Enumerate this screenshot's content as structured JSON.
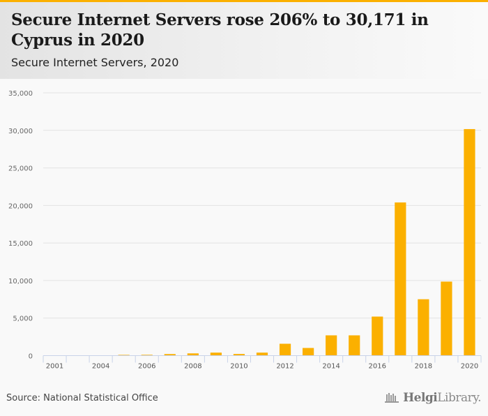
{
  "header": {
    "title": "Secure Internet Servers rose 206% to 30,171 in Cyprus in 2020",
    "subtitle": "Secure Internet Servers, 2020"
  },
  "footer": {
    "source": "Source: National Statistical Office",
    "logo_bold": "Helgi",
    "logo_light": "Library."
  },
  "colors": {
    "accent": "#fbb000",
    "bar": "#fbb000",
    "grid": "#e3e3e3",
    "axis": "#c8d2e8"
  },
  "chart_data": {
    "type": "bar",
    "title": "Secure Internet Servers rose 206% to 30,171 in Cyprus in 2020",
    "subtitle": "Secure Internet Servers, 2020",
    "xlabel": "",
    "ylabel": "",
    "categories": [
      "2001",
      "2003",
      "2004",
      "2005",
      "2006",
      "2007",
      "2008",
      "2009",
      "2010",
      "2011",
      "2012",
      "2013",
      "2014",
      "2015",
      "2016",
      "2017",
      "2018",
      "2019",
      "2020"
    ],
    "x_tick_labels": [
      "2001",
      "",
      "2004",
      "",
      "2006",
      "",
      "2008",
      "",
      "2010",
      "",
      "2012",
      "",
      "2014",
      "",
      "2016",
      "",
      "2018",
      "",
      "2020"
    ],
    "values": [
      10,
      15,
      30,
      100,
      110,
      210,
      300,
      400,
      220,
      400,
      1580,
      1020,
      2700,
      2700,
      5200,
      20400,
      7510,
      9860,
      30171
    ],
    "ylim": [
      0,
      35000
    ],
    "yticks": [
      0,
      5000,
      10000,
      15000,
      20000,
      25000,
      30000,
      35000
    ],
    "ytick_labels": [
      "0",
      "5,000",
      "10,000",
      "15,000",
      "20,000",
      "25,000",
      "30,000",
      "35,000"
    ],
    "grid": true,
    "legend": "none"
  }
}
